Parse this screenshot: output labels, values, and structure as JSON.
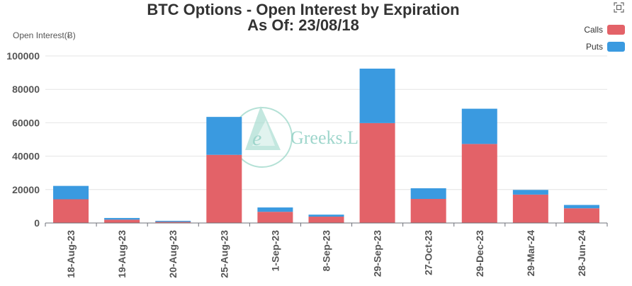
{
  "chart_data": {
    "type": "bar",
    "stacked": true,
    "title": "BTC Options - Open Interest by Expiration",
    "subtitle": "As Of: 23/08/18",
    "ylabel": "Open Interest(Ƀ)",
    "xlabel": "",
    "ylim": [
      0,
      100000
    ],
    "yticks": [
      0,
      20000,
      40000,
      60000,
      80000,
      100000
    ],
    "grid": true,
    "legend_position": "top-right",
    "categories": [
      "18-Aug-23",
      "19-Aug-23",
      "20-Aug-23",
      "25-Aug-23",
      "1-Sep-23",
      "8-Sep-23",
      "29-Sep-23",
      "27-Oct-23",
      "29-Dec-23",
      "29-Mar-24",
      "28-Jun-24"
    ],
    "series": [
      {
        "name": "Calls",
        "color": "#e36268",
        "values": [
          14200,
          2000,
          700,
          40800,
          6700,
          3800,
          59800,
          14400,
          47300,
          17000,
          8800
        ]
      },
      {
        "name": "Puts",
        "color": "#3a9ae0",
        "values": [
          8000,
          1000,
          600,
          22700,
          2600,
          1200,
          32600,
          6400,
          21100,
          2800,
          2000
        ]
      }
    ]
  },
  "watermark": {
    "text": "Greeks.L",
    "letter": "e"
  },
  "toolbox": {
    "icon": "restore-icon"
  }
}
